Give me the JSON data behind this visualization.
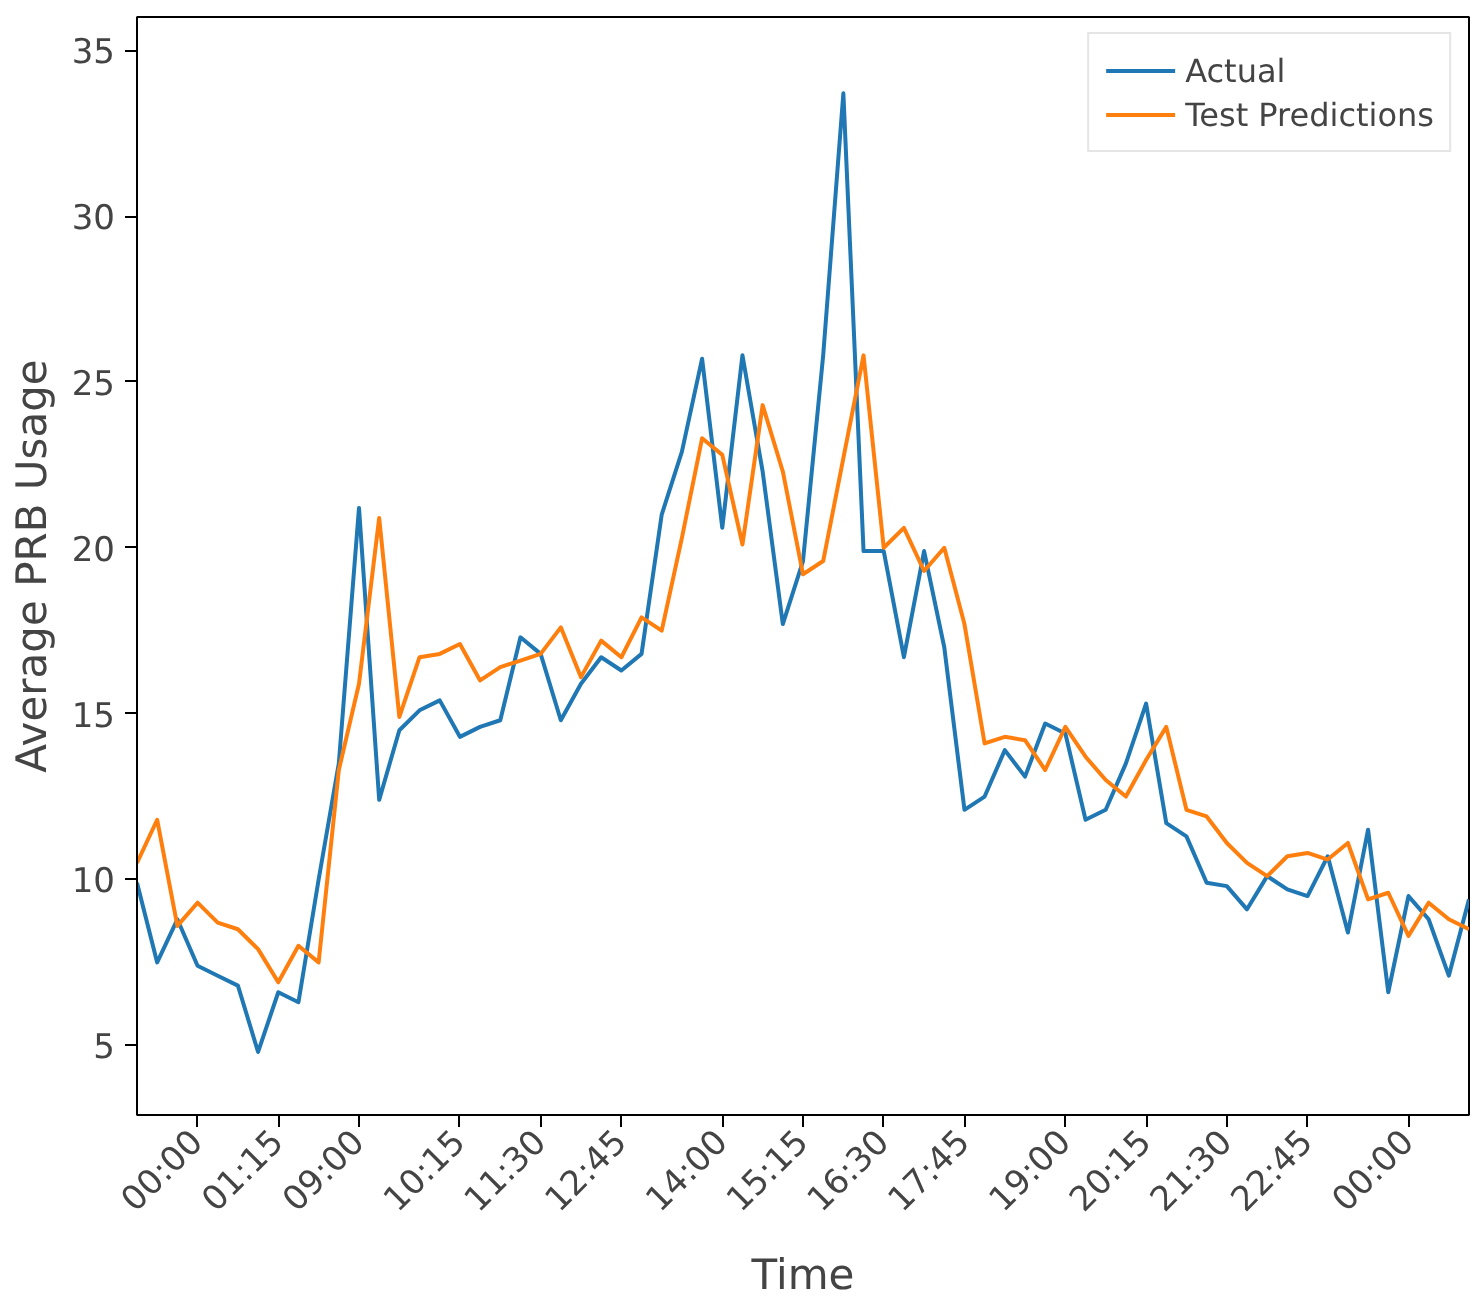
{
  "chart_data": {
    "type": "line",
    "xlabel": "Time",
    "ylabel": "Average PRB Usage",
    "categories": [
      null,
      null,
      null,
      "00:00",
      null,
      null,
      null,
      "01:15",
      null,
      null,
      null,
      "09:00",
      null,
      null,
      null,
      null,
      "10:15",
      null,
      null,
      null,
      "11:30",
      null,
      null,
      null,
      "12:45",
      null,
      null,
      null,
      null,
      "14:00",
      null,
      null,
      null,
      "15:15",
      null,
      null,
      null,
      "16:30",
      null,
      null,
      null,
      "17:45",
      null,
      null,
      null,
      null,
      "19:00",
      null,
      null,
      null,
      "20:15",
      null,
      null,
      null,
      "21:30",
      null,
      null,
      null,
      "22:45",
      null,
      null,
      null,
      null,
      "00:00",
      null,
      null,
      null
    ],
    "ylim": [
      2.9,
      36.0
    ],
    "yticks": [
      5,
      10,
      15,
      20,
      25,
      30,
      35
    ],
    "legend": "top right",
    "series": [
      {
        "name": "Actual",
        "color": "#1f77b4",
        "values": [
          9.9,
          7.5,
          8.8,
          7.4,
          7.1,
          6.8,
          4.8,
          6.6,
          6.3,
          10.0,
          13.5,
          21.2,
          12.4,
          14.5,
          15.1,
          15.4,
          14.3,
          14.6,
          14.8,
          17.3,
          16.8,
          14.8,
          15.9,
          16.7,
          16.3,
          16.8,
          21.0,
          22.9,
          25.7,
          20.6,
          25.8,
          22.3,
          17.7,
          19.6,
          25.8,
          33.7,
          19.9,
          19.9,
          16.7,
          19.9,
          17.0,
          12.1,
          12.5,
          13.9,
          13.1,
          14.7,
          14.4,
          11.8,
          12.1,
          13.5,
          15.3,
          11.7,
          11.3,
          9.9,
          9.8,
          9.1,
          10.1,
          9.7,
          9.5,
          10.7,
          8.4,
          11.5,
          6.6,
          9.5,
          8.8,
          7.1,
          9.4
        ]
      },
      {
        "name": "Test Predictions",
        "color": "#ff7f0e",
        "values": [
          10.5,
          11.8,
          8.6,
          9.3,
          8.7,
          8.5,
          7.9,
          6.9,
          8.0,
          7.5,
          13.3,
          15.9,
          20.9,
          14.9,
          16.7,
          16.8,
          17.1,
          16.0,
          16.4,
          16.6,
          16.8,
          17.6,
          16.1,
          17.2,
          16.7,
          17.9,
          17.5,
          20.3,
          23.3,
          22.8,
          20.1,
          24.3,
          22.3,
          19.2,
          19.6,
          22.7,
          25.8,
          20.0,
          20.6,
          19.3,
          20.0,
          17.7,
          14.1,
          14.3,
          14.2,
          13.3,
          14.6,
          13.7,
          13.0,
          12.5,
          13.6,
          14.6,
          12.1,
          11.9,
          11.1,
          10.5,
          10.1,
          10.7,
          10.8,
          10.6,
          11.1,
          9.4,
          9.6,
          8.3,
          9.3,
          8.8,
          8.5
        ]
      }
    ]
  }
}
